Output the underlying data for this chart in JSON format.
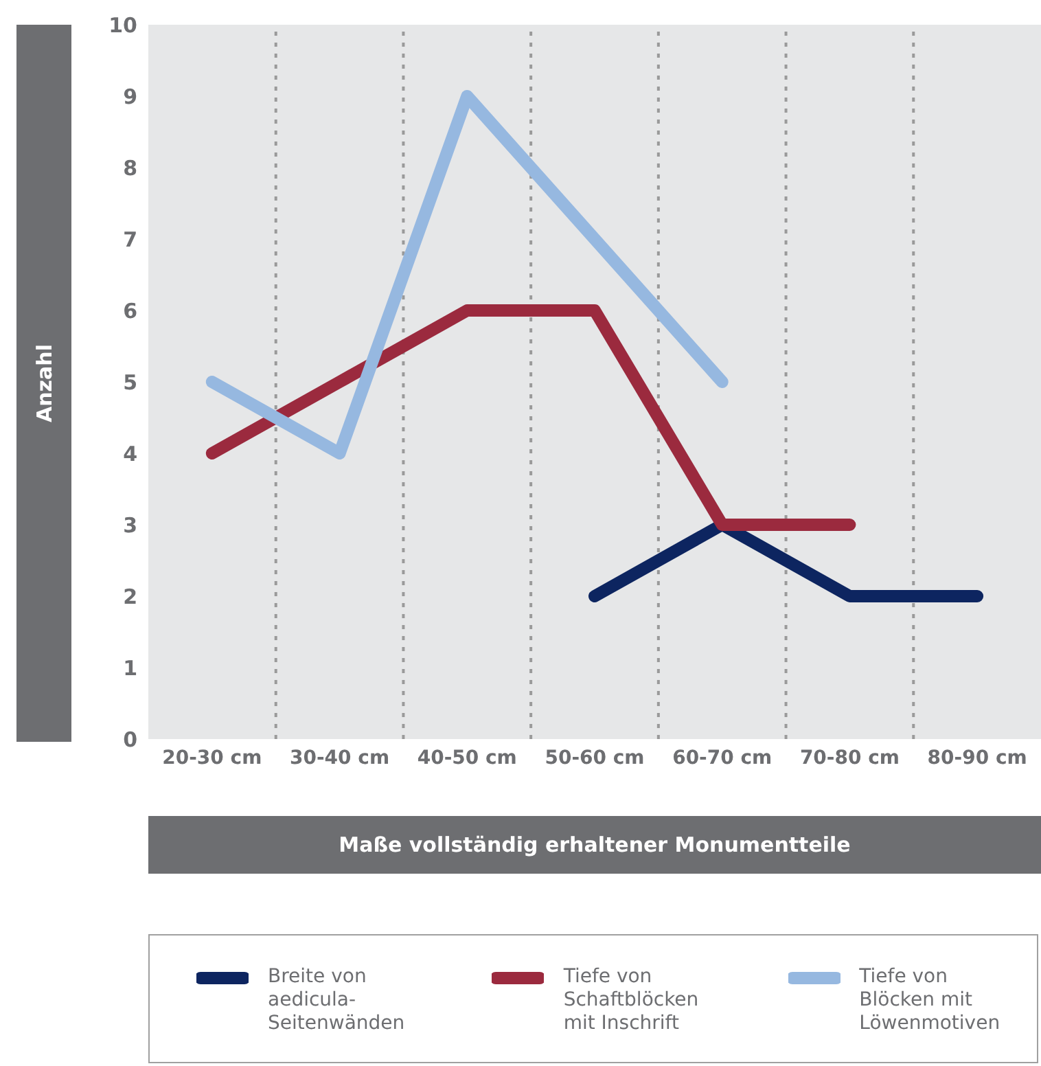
{
  "chart_data": {
    "type": "line",
    "xlabel": "Maße vollständig erhaltener Monumentteile",
    "ylabel": "Anzahl",
    "categories": [
      "20-30 cm",
      "30-40 cm",
      "40-50 cm",
      "50-60 cm",
      "60-70 cm",
      "70-80 cm",
      "80-90 cm"
    ],
    "series": [
      {
        "name": "Breite von aedicula-Seitenwänden",
        "color": "#0d2560",
        "values": [
          null,
          null,
          null,
          2,
          3,
          2,
          2
        ]
      },
      {
        "name": "Tiefe von Schaftblöcken mit Inschrift",
        "color": "#9b2a3e",
        "values": [
          4,
          5,
          6,
          6,
          3,
          3,
          null
        ]
      },
      {
        "name": "Tiefe von Blöcken mit Löwenmotiven",
        "color": "#96b8e0",
        "values": [
          5,
          4,
          9,
          7,
          5,
          null,
          null
        ]
      }
    ],
    "ylim": [
      0,
      10
    ],
    "yticks": [
      0,
      1,
      2,
      3,
      4,
      5,
      6,
      7,
      8,
      9,
      10
    ],
    "grid": "x",
    "legend": "bottom",
    "marker": "none",
    "line_style": "solid"
  }
}
